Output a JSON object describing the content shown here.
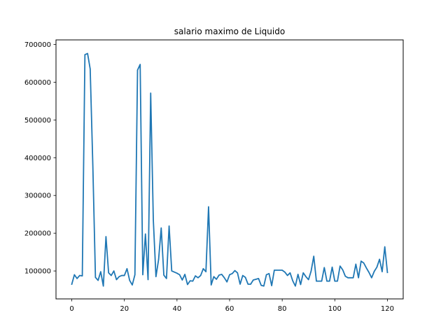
{
  "chart_data": {
    "type": "line",
    "title": "salario maximo de Liquido",
    "xlabel": "",
    "ylabel": "",
    "xlim": [
      -6,
      126
    ],
    "ylim": [
      26000,
      712000
    ],
    "xticks": [
      0,
      20,
      40,
      60,
      80,
      100,
      120
    ],
    "yticks": [
      100000,
      200000,
      300000,
      400000,
      500000,
      600000,
      700000
    ],
    "grid": false,
    "line_color": "#1f77b4",
    "series": [
      {
        "x": [
          0,
          1,
          2,
          3,
          4,
          5,
          6,
          7,
          8,
          9,
          10,
          11,
          12,
          13,
          14,
          15,
          16,
          17,
          18,
          19,
          20,
          21,
          22,
          23,
          24,
          25,
          26,
          27,
          28,
          29,
          30,
          31,
          32,
          33,
          34,
          35,
          36,
          37,
          38,
          39,
          40,
          41,
          42,
          43,
          44,
          45,
          46,
          47,
          48,
          49,
          50,
          51,
          52,
          53,
          54,
          55,
          56,
          57,
          58,
          59,
          60,
          61,
          62,
          63,
          64,
          65,
          66,
          67,
          68,
          69,
          70,
          71,
          72,
          73,
          74,
          75,
          76,
          77,
          78,
          79,
          80,
          81,
          82,
          83,
          84,
          85,
          86,
          87,
          88,
          89,
          90,
          91,
          92,
          93,
          94,
          95,
          96,
          97,
          98,
          99,
          100,
          101,
          102,
          103,
          104,
          105,
          106,
          107,
          108,
          109,
          110,
          111,
          112,
          113,
          114,
          115,
          116,
          117,
          118,
          119,
          120
        ],
        "y": [
          65000,
          90000,
          80000,
          88000,
          87000,
          673000,
          676000,
          635000,
          380000,
          83000,
          75000,
          98000,
          60000,
          191000,
          95000,
          88000,
          100000,
          77000,
          85000,
          88000,
          88000,
          106000,
          75000,
          63000,
          90000,
          632000,
          647000,
          90000,
          198000,
          77000,
          571000,
          235000,
          85000,
          130000,
          214000,
          89000,
          80000,
          219000,
          100000,
          97000,
          94000,
          90000,
          76000,
          91000,
          64000,
          74000,
          73000,
          87000,
          82000,
          88000,
          106000,
          98000,
          270000,
          63000,
          85000,
          78000,
          89000,
          91000,
          82000,
          71000,
          90000,
          93000,
          101000,
          95000,
          65000,
          88000,
          83000,
          65000,
          65000,
          76000,
          78000,
          80000,
          62000,
          60000,
          90000,
          93000,
          61000,
          102000,
          102000,
          102000,
          102000,
          97000,
          88000,
          95000,
          74000,
          60000,
          91000,
          64000,
          95000,
          85000,
          77000,
          100000,
          139000,
          73000,
          73000,
          73000,
          109000,
          73000,
          73000,
          110000,
          73000,
          73000,
          113000,
          103000,
          86000,
          82000,
          82000,
          82000,
          118000,
          82000,
          126000,
          121000,
          108000,
          96000,
          82000,
          99000,
          110000,
          131000,
          98000,
          164000,
          96000
        ]
      }
    ]
  }
}
